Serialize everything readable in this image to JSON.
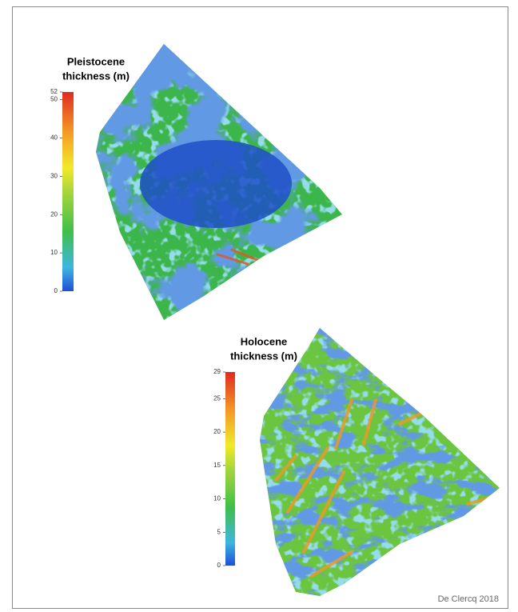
{
  "maps": [
    {
      "title_lines": [
        "Pleistocene",
        "thickness (m)"
      ],
      "colorbar": {
        "min": 0,
        "max": 52,
        "ticks": [
          0,
          10,
          20,
          30,
          40,
          50,
          52
        ]
      }
    },
    {
      "title_lines": [
        "Holocene",
        "thickness (m)"
      ],
      "colorbar": {
        "min": 0,
        "max": 29,
        "ticks": [
          0,
          5,
          10,
          15,
          20,
          25,
          29
        ]
      }
    }
  ],
  "caption": "De Clercq 2018"
}
